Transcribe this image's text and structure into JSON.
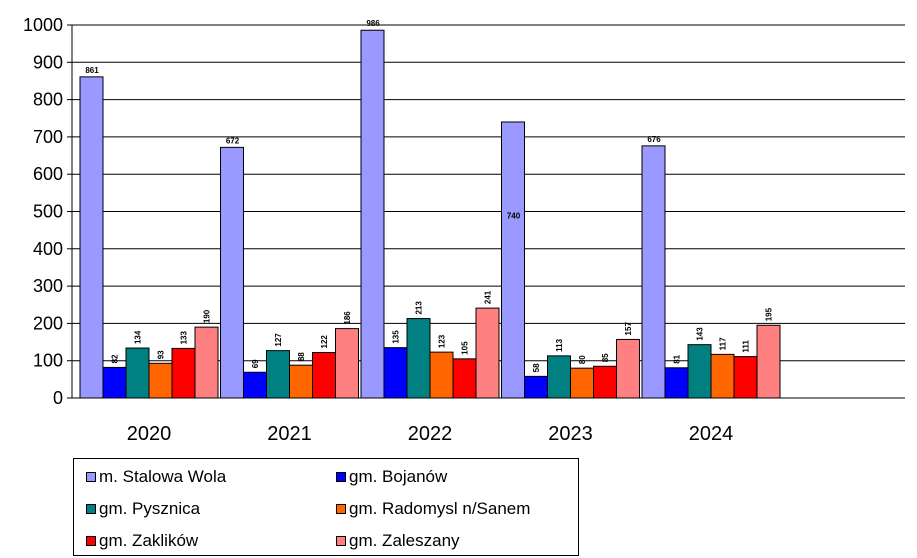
{
  "chart_data": {
    "type": "bar",
    "categories": [
      "2020",
      "2021",
      "2022",
      "2023",
      "2024"
    ],
    "ylim": [
      0,
      1000
    ],
    "yticks": [
      "0",
      "100",
      "200",
      "300",
      "400",
      "500",
      "600",
      "700",
      "800",
      "900",
      "1000"
    ],
    "grid": true,
    "legend_position": "bottom",
    "series": [
      {
        "name": "m. Stalowa Wola",
        "color": "#9999ff",
        "values": [
          861,
          672,
          986,
          740,
          676
        ]
      },
      {
        "name": "gm. Bojanów",
        "color": "#0000ff",
        "values": [
          82,
          69,
          135,
          58,
          81
        ]
      },
      {
        "name": "gm. Pysznica",
        "color": "#008080",
        "values": [
          134,
          127,
          213,
          113,
          143
        ]
      },
      {
        "name": "gm. Radomysl n/Sanem",
        "color": "#ff6600",
        "values": [
          93,
          88,
          123,
          80,
          117
        ]
      },
      {
        "name": "gm. Zaklików",
        "color": "#ff0000",
        "values": [
          133,
          122,
          105,
          85,
          111
        ]
      },
      {
        "name": "gm. Zaleszany",
        "color": "#ff8080",
        "values": [
          190,
          186,
          241,
          157,
          195
        ]
      }
    ],
    "data_labels": [
      [
        "861",
        "672",
        "986",
        "740",
        "676"
      ],
      [
        "82",
        "69",
        "135",
        "58",
        "81"
      ],
      [
        "134",
        "127",
        "213",
        "113",
        "143"
      ],
      [
        "93",
        "88",
        "123",
        "80",
        "117"
      ],
      [
        "133",
        "122",
        "105",
        "85",
        "111"
      ],
      [
        "190",
        "186",
        "241",
        "157",
        "195"
      ]
    ]
  },
  "legend": {
    "items": [
      {
        "label": "m. Stalowa Wola",
        "color": "#9999ff"
      },
      {
        "label": "gm. Bojanów",
        "color": "#0000ff"
      },
      {
        "label": "gm. Pysznica",
        "color": "#008080"
      },
      {
        "label": "gm. Radomysl n/Sanem",
        "color": "#ff6600"
      },
      {
        "label": "gm. Zaklików",
        "color": "#ff0000"
      },
      {
        "label": "gm. Zaleszany",
        "color": "#ff8080"
      }
    ]
  }
}
